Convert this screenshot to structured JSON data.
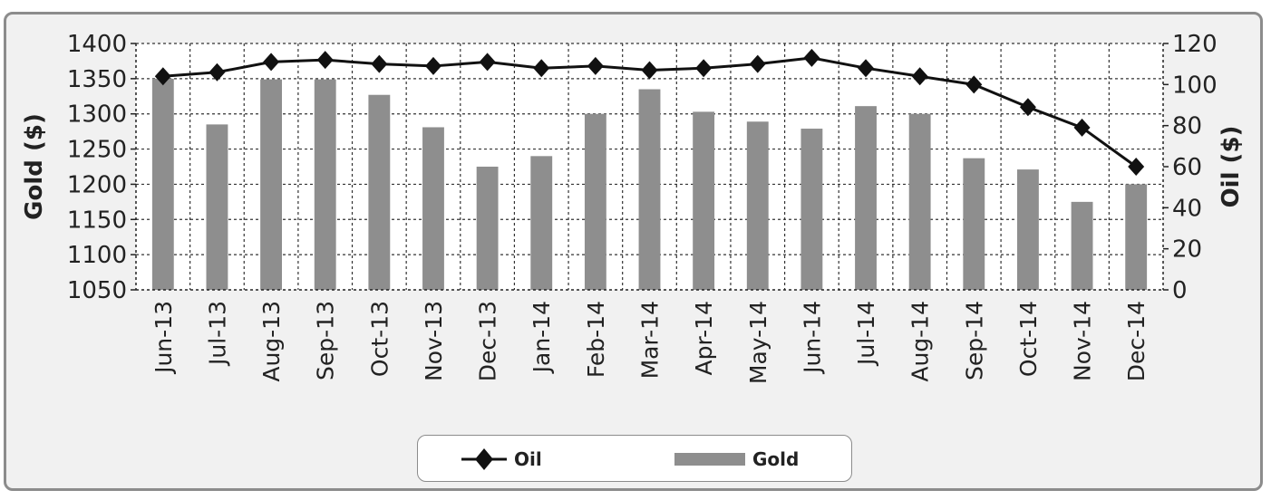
{
  "chart_data": {
    "type": "bar+line",
    "categories": [
      "Jun-13",
      "Jul-13",
      "Aug-13",
      "Sep-13",
      "Oct-13",
      "Nov-13",
      "Dec-13",
      "Jan-14",
      "Feb-14",
      "Mar-14",
      "Apr-14",
      "May-14",
      "Jun-14",
      "Jul-14",
      "Aug-14",
      "Sep-14",
      "Oct-14",
      "Nov-14",
      "Dec-14"
    ],
    "series": [
      {
        "name": "Gold",
        "kind": "bar",
        "axis": "left",
        "values": [
          1350,
          1285,
          1349,
          1349,
          1327,
          1281,
          1225,
          1240,
          1300,
          1335,
          1303,
          1289,
          1279,
          1311,
          1300,
          1237,
          1221,
          1175,
          1200
        ]
      },
      {
        "name": "Oil",
        "kind": "line",
        "axis": "right",
        "values": [
          104,
          106,
          111,
          112,
          110,
          109,
          111,
          108,
          109,
          107,
          108,
          110,
          113,
          108,
          104,
          100,
          89,
          79,
          60
        ]
      }
    ],
    "ylabel_left": "Gold ($)",
    "ylabel_right": "Oil ($)",
    "ylim_left": [
      1050,
      1400
    ],
    "ylim_right": [
      0,
      120
    ],
    "yticks_left": [
      1050,
      1100,
      1150,
      1200,
      1250,
      1300,
      1350,
      1400
    ],
    "yticks_right": [
      0,
      20,
      40,
      60,
      80,
      100,
      120
    ],
    "grid": true,
    "legend_position": "bottom-center",
    "colors": {
      "gold_bar": "#8e8e8e",
      "oil_line": "#111111",
      "frame": "#8c8c8c",
      "panel": "#f1f1f1"
    }
  },
  "legend": {
    "oil_label": "Oil",
    "gold_label": "Gold"
  }
}
